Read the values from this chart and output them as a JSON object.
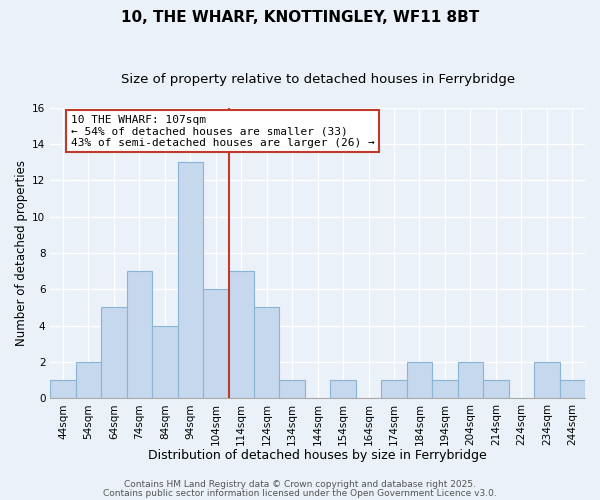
{
  "title": "10, THE WHARF, KNOTTINGLEY, WF11 8BT",
  "subtitle": "Size of property relative to detached houses in Ferrybridge",
  "xlabel": "Distribution of detached houses by size in Ferrybridge",
  "ylabel": "Number of detached properties",
  "bin_labels": [
    "44sqm",
    "54sqm",
    "64sqm",
    "74sqm",
    "84sqm",
    "94sqm",
    "104sqm",
    "114sqm",
    "124sqm",
    "134sqm",
    "144sqm",
    "154sqm",
    "164sqm",
    "174sqm",
    "184sqm",
    "194sqm",
    "204sqm",
    "214sqm",
    "224sqm",
    "234sqm",
    "244sqm"
  ],
  "bar_values": [
    1,
    2,
    5,
    7,
    4,
    13,
    6,
    7,
    5,
    1,
    0,
    1,
    0,
    1,
    2,
    1,
    2,
    1,
    0,
    2,
    1
  ],
  "bar_color": "#c5d8ed",
  "bar_edge_color": "#8ab4d4",
  "vline_color": "#c0392b",
  "annotation_title": "10 THE WHARF: 107sqm",
  "annotation_line1": "← 54% of detached houses are smaller (33)",
  "annotation_line2": "43% of semi-detached houses are larger (26) →",
  "annotation_box_color": "#ffffff",
  "annotation_box_edge": "#c0392b",
  "ylim": [
    0,
    16
  ],
  "yticks": [
    0,
    2,
    4,
    6,
    8,
    10,
    12,
    14,
    16
  ],
  "bg_color": "#eaf1f8",
  "plot_bg_color": "#eaf1f8",
  "grid_color": "#ffffff",
  "footer1": "Contains HM Land Registry data © Crown copyright and database right 2025.",
  "footer2": "Contains public sector information licensed under the Open Government Licence v3.0.",
  "title_fontsize": 11,
  "subtitle_fontsize": 9.5,
  "xlabel_fontsize": 9,
  "ylabel_fontsize": 8.5,
  "tick_fontsize": 7.5,
  "annotation_fontsize": 8,
  "footer_fontsize": 6.5
}
